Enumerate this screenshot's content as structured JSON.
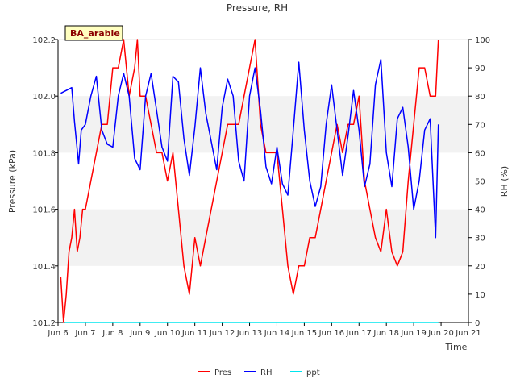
{
  "chart_data": {
    "type": "line",
    "title": "Pressure, RH",
    "xlabel": "Time",
    "ylabel": "Pressure (kPa)",
    "y2label": "RH (%)",
    "badge": "BA_arable",
    "x_ticks": [
      "Jun 6",
      "Jun 7",
      "Jun 8",
      "Jun 9",
      "Jun 10",
      "Jun 11",
      "Jun 12",
      "Jun 13",
      "Jun 14",
      "Jun 15",
      "Jun 16",
      "Jun 17",
      "Jun 18",
      "Jun 19",
      "Jun 20",
      "Jun 21"
    ],
    "xlim_days": [
      6,
      21
    ],
    "ylim": [
      101.2,
      102.2
    ],
    "y_ticks": [
      "101.2",
      "101.4",
      "101.6",
      "101.8",
      "102.0",
      "102.2"
    ],
    "y2lim": [
      0,
      100
    ],
    "y2_ticks": [
      "0",
      "10",
      "20",
      "30",
      "40",
      "50",
      "60",
      "70",
      "80",
      "90",
      "100"
    ],
    "grid": "horizontal bands",
    "legend_position": "bottom-center",
    "series": [
      {
        "name": "Pres",
        "axis": "left",
        "color": "#ff0000",
        "x": [
          6.1,
          6.2,
          6.3,
          6.4,
          6.5,
          6.6,
          6.7,
          6.8,
          6.9,
          7.0,
          7.2,
          7.4,
          7.6,
          7.8,
          8.0,
          8.2,
          8.4,
          8.6,
          8.8,
          8.9,
          9.0,
          9.2,
          9.4,
          9.6,
          9.8,
          9.9,
          10.0,
          10.2,
          10.4,
          10.6,
          10.8,
          11.0,
          11.2,
          11.4,
          11.6,
          11.8,
          12.0,
          12.2,
          12.4,
          12.6,
          12.8,
          13.0,
          13.2,
          13.4,
          13.6,
          13.8,
          14.0,
          14.2,
          14.4,
          14.6,
          14.8,
          15.0,
          15.2,
          15.4,
          15.6,
          15.8,
          16.0,
          16.2,
          16.4,
          16.6,
          16.8,
          17.0,
          17.2,
          17.4,
          17.6,
          17.8,
          18.0,
          18.2,
          18.4,
          18.6,
          18.8,
          19.0,
          19.2,
          19.4,
          19.6,
          19.8,
          19.9
        ],
        "y": [
          101.36,
          101.2,
          101.3,
          101.45,
          101.5,
          101.6,
          101.45,
          101.5,
          101.6,
          101.6,
          101.7,
          101.8,
          101.9,
          101.9,
          102.1,
          102.1,
          102.2,
          102.0,
          102.1,
          102.2,
          102.0,
          102.0,
          101.9,
          101.8,
          101.8,
          101.75,
          101.7,
          101.8,
          101.6,
          101.4,
          101.3,
          101.5,
          101.4,
          101.5,
          101.6,
          101.7,
          101.8,
          101.9,
          101.9,
          101.9,
          102.0,
          102.1,
          102.2,
          101.9,
          101.8,
          101.8,
          101.8,
          101.6,
          101.4,
          101.3,
          101.4,
          101.4,
          101.5,
          101.5,
          101.6,
          101.7,
          101.8,
          101.9,
          101.8,
          101.9,
          101.9,
          102.0,
          101.7,
          101.6,
          101.5,
          101.45,
          101.6,
          101.45,
          101.4,
          101.45,
          101.7,
          101.9,
          102.1,
          102.1,
          102.0,
          102.0,
          102.2
        ]
      },
      {
        "name": "RH",
        "axis": "right",
        "color": "#0000ff",
        "x": [
          6.1,
          6.3,
          6.5,
          6.6,
          6.75,
          6.85,
          7.0,
          7.2,
          7.4,
          7.6,
          7.8,
          8.0,
          8.2,
          8.4,
          8.6,
          8.8,
          9.0,
          9.2,
          9.4,
          9.6,
          9.8,
          10.0,
          10.2,
          10.4,
          10.6,
          10.8,
          11.0,
          11.2,
          11.4,
          11.6,
          11.8,
          12.0,
          12.2,
          12.4,
          12.6,
          12.8,
          13.0,
          13.2,
          13.4,
          13.6,
          13.8,
          14.0,
          14.2,
          14.4,
          14.6,
          14.8,
          15.0,
          15.2,
          15.4,
          15.6,
          15.8,
          16.0,
          16.2,
          16.4,
          16.6,
          16.8,
          17.0,
          17.2,
          17.4,
          17.6,
          17.8,
          18.0,
          18.2,
          18.4,
          18.6,
          18.8,
          19.0,
          19.2,
          19.4,
          19.6,
          19.8,
          19.9
        ],
        "y": [
          81,
          82,
          83,
          71,
          56,
          68,
          70,
          80,
          87,
          68,
          63,
          62,
          80,
          88,
          80,
          58,
          54,
          80,
          88,
          75,
          62,
          57,
          87,
          85,
          65,
          52,
          69,
          90,
          74,
          64,
          54,
          76,
          86,
          80,
          57,
          50,
          80,
          90,
          75,
          55,
          49,
          62,
          49,
          45,
          68,
          92,
          68,
          50,
          41,
          48,
          70,
          84,
          68,
          52,
          66,
          82,
          68,
          48,
          56,
          84,
          93,
          60,
          48,
          72,
          76,
          62,
          40,
          50,
          68,
          72,
          30,
          70
        ]
      },
      {
        "name": "ppt",
        "axis": "right",
        "color": "#00e5ee",
        "x": [
          6.25,
          19.9
        ],
        "y": [
          0,
          0
        ]
      }
    ]
  }
}
